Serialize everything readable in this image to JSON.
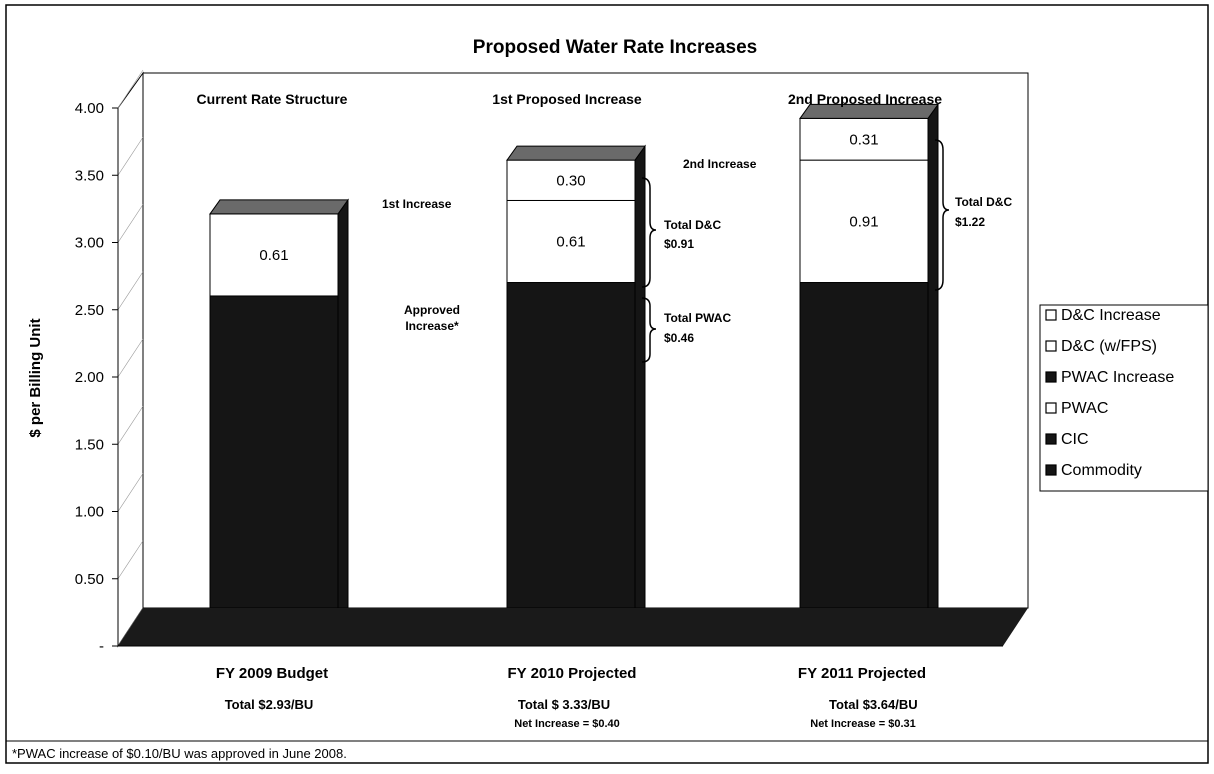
{
  "chart_data": {
    "type": "bar",
    "title": "Proposed Water Rate Increases",
    "ylabel": "$ per Billing Unit",
    "xlabel": "",
    "ylim": [
      0,
      4.0
    ],
    "y_ticks": [
      {
        "value": 0,
        "label": "-"
      },
      {
        "value": 0.5,
        "label": "0.50"
      },
      {
        "value": 1.0,
        "label": "1.00"
      },
      {
        "value": 1.5,
        "label": "1.50"
      },
      {
        "value": 2.0,
        "label": "2.00"
      },
      {
        "value": 2.5,
        "label": "2.50"
      },
      {
        "value": 3.0,
        "label": "3.00"
      },
      {
        "value": 3.5,
        "label": "3.50"
      },
      {
        "value": 4.0,
        "label": "4.00"
      }
    ],
    "categories": [
      "FY 2009 Budget",
      "FY 2010 Projected",
      "FY 2011 Projected"
    ],
    "category_headers": [
      "Current Rate Structure",
      "1st Proposed Increase",
      "2nd Proposed Increase"
    ],
    "category_totals": [
      "Total $2.93/BU",
      "Total $ 3.33/BU",
      "Total $3.64/BU"
    ],
    "category_net": [
      "",
      "Net Increase = $0.40",
      "Net Increase = $0.31"
    ],
    "stacks": [
      [
        {
          "series": "Commodity",
          "value": 2.32,
          "label": ""
        },
        {
          "series": "D&C (w/FPS)",
          "value": 0.61,
          "label": "0.61"
        }
      ],
      [
        {
          "series": "Commodity",
          "value": 2.42,
          "label": ""
        },
        {
          "series": "D&C (w/FPS)",
          "value": 0.61,
          "label": "0.61"
        },
        {
          "series": "D&C Increase",
          "value": 0.3,
          "label": "0.30"
        }
      ],
      [
        {
          "series": "Commodity",
          "value": 2.42,
          "label": ""
        },
        {
          "series": "D&C (w/FPS)",
          "value": 0.91,
          "label": "0.91"
        },
        {
          "series": "D&C Increase",
          "value": 0.31,
          "label": "0.31"
        }
      ]
    ],
    "legend": {
      "position": "right",
      "entries": [
        {
          "name": "D&C Increase",
          "style": "outline"
        },
        {
          "name": "D&C (w/FPS)",
          "style": "outline"
        },
        {
          "name": "PWAC Increase",
          "style": "solid"
        },
        {
          "name": "PWAC",
          "style": "outline"
        },
        {
          "name": "CIC",
          "style": "solid"
        },
        {
          "name": "Commodity",
          "style": "solid"
        }
      ]
    },
    "annotations": {
      "first_increase": "1st Increase",
      "approved_line1": "Approved",
      "approved_line2": "Increase*",
      "total_dc_1_line1": "Total D&C",
      "total_dc_1_line2": "$0.91",
      "total_pwac_line1": "Total PWAC",
      "total_pwac_line2": "$0.46",
      "second_increase": "2nd Increase",
      "total_dc_2_line1": "Total D&C",
      "total_dc_2_line2": "$1.22"
    },
    "footnote": "*PWAC increase of $0.10/BU was approved in June 2008.",
    "colors": {
      "dark": "#151515",
      "light": "#ffffff",
      "floor": "#1a1a1a"
    }
  }
}
